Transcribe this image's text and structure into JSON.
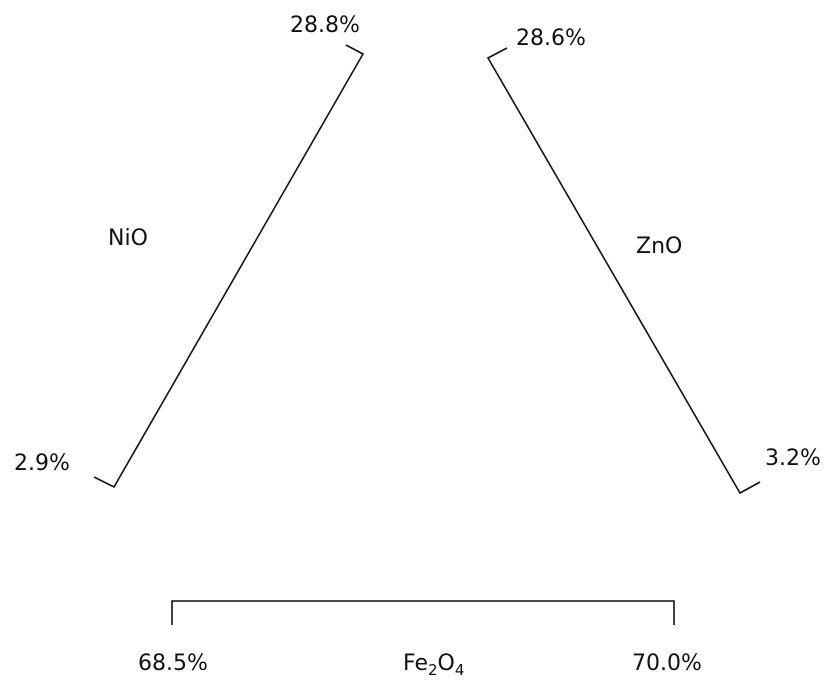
{
  "ternary_ranges": {
    "nio": {
      "label": "NiO",
      "min": "2.9%",
      "max": "28.8%"
    },
    "zno": {
      "label": "ZnO",
      "min": "3.2%",
      "max": "28.6%"
    },
    "fe2o4": {
      "label_main": "Fe",
      "sub1": "2",
      "mid": "O",
      "sub2": "4",
      "min": "68.5%",
      "max": "70.0%"
    }
  }
}
